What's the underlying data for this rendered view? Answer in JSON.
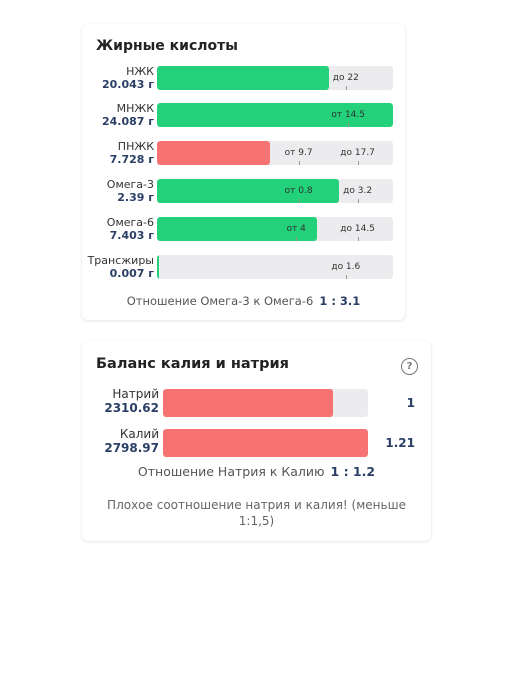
{
  "fatty_acids": {
    "title": "Жирные кислоты",
    "rows": [
      {
        "name": "НЖК",
        "value": "20.043 г",
        "fill_pct": 73,
        "color": "green",
        "marks": [
          {
            "text": "до 22",
            "pos_pct": 80
          }
        ]
      },
      {
        "name": "МНЖК",
        "value": "24.087 г",
        "fill_pct": 100,
        "color": "green",
        "marks": [
          {
            "text": "от 14.5",
            "pos_pct": 81
          }
        ]
      },
      {
        "name": "ПНЖК",
        "value": "7.728 г",
        "fill_pct": 48,
        "color": "red",
        "marks": [
          {
            "text": "от 9.7",
            "pos_pct": 60
          },
          {
            "text": "до 17.7",
            "pos_pct": 85
          }
        ]
      },
      {
        "name": "Омега-3",
        "value": "2.39 г",
        "fill_pct": 77,
        "color": "green",
        "marks": [
          {
            "text": "от 0.8",
            "pos_pct": 60
          },
          {
            "text": "до 3.2",
            "pos_pct": 85
          }
        ]
      },
      {
        "name": "Омега-6",
        "value": "7.403 г",
        "fill_pct": 68,
        "color": "green",
        "marks": [
          {
            "text": "от 4",
            "pos_pct": 59
          },
          {
            "text": "до 14.5",
            "pos_pct": 85
          }
        ]
      },
      {
        "name": "Трансжиры",
        "value": "0.007 г",
        "fill_pct": 0.5,
        "color": "green",
        "marks": [
          {
            "text": "до 1.6",
            "pos_pct": 80
          }
        ]
      }
    ],
    "ratio_label": "Отношение Омега-3 к Омега-6",
    "ratio_value": "1 : 3.1"
  },
  "potassium_sodium": {
    "title": "Баланс калия и натрия",
    "help_icon": "?",
    "rows": [
      {
        "name": "Натрий",
        "value": "2310.62",
        "fill_pct": 83,
        "number": "1"
      },
      {
        "name": "Калий",
        "value": "2798.97",
        "fill_pct": 100,
        "number": "1.21"
      }
    ],
    "ratio_label": "Отношение Натрия к Калию",
    "ratio_value": "1 : 1.2",
    "warning": "Плохое соотношение натрия и калия! (меньше 1:1,5)"
  },
  "colors": {
    "green": "#22d17a",
    "red": "#f67273",
    "value_text": "#2b3f66",
    "track": "#ececee"
  }
}
